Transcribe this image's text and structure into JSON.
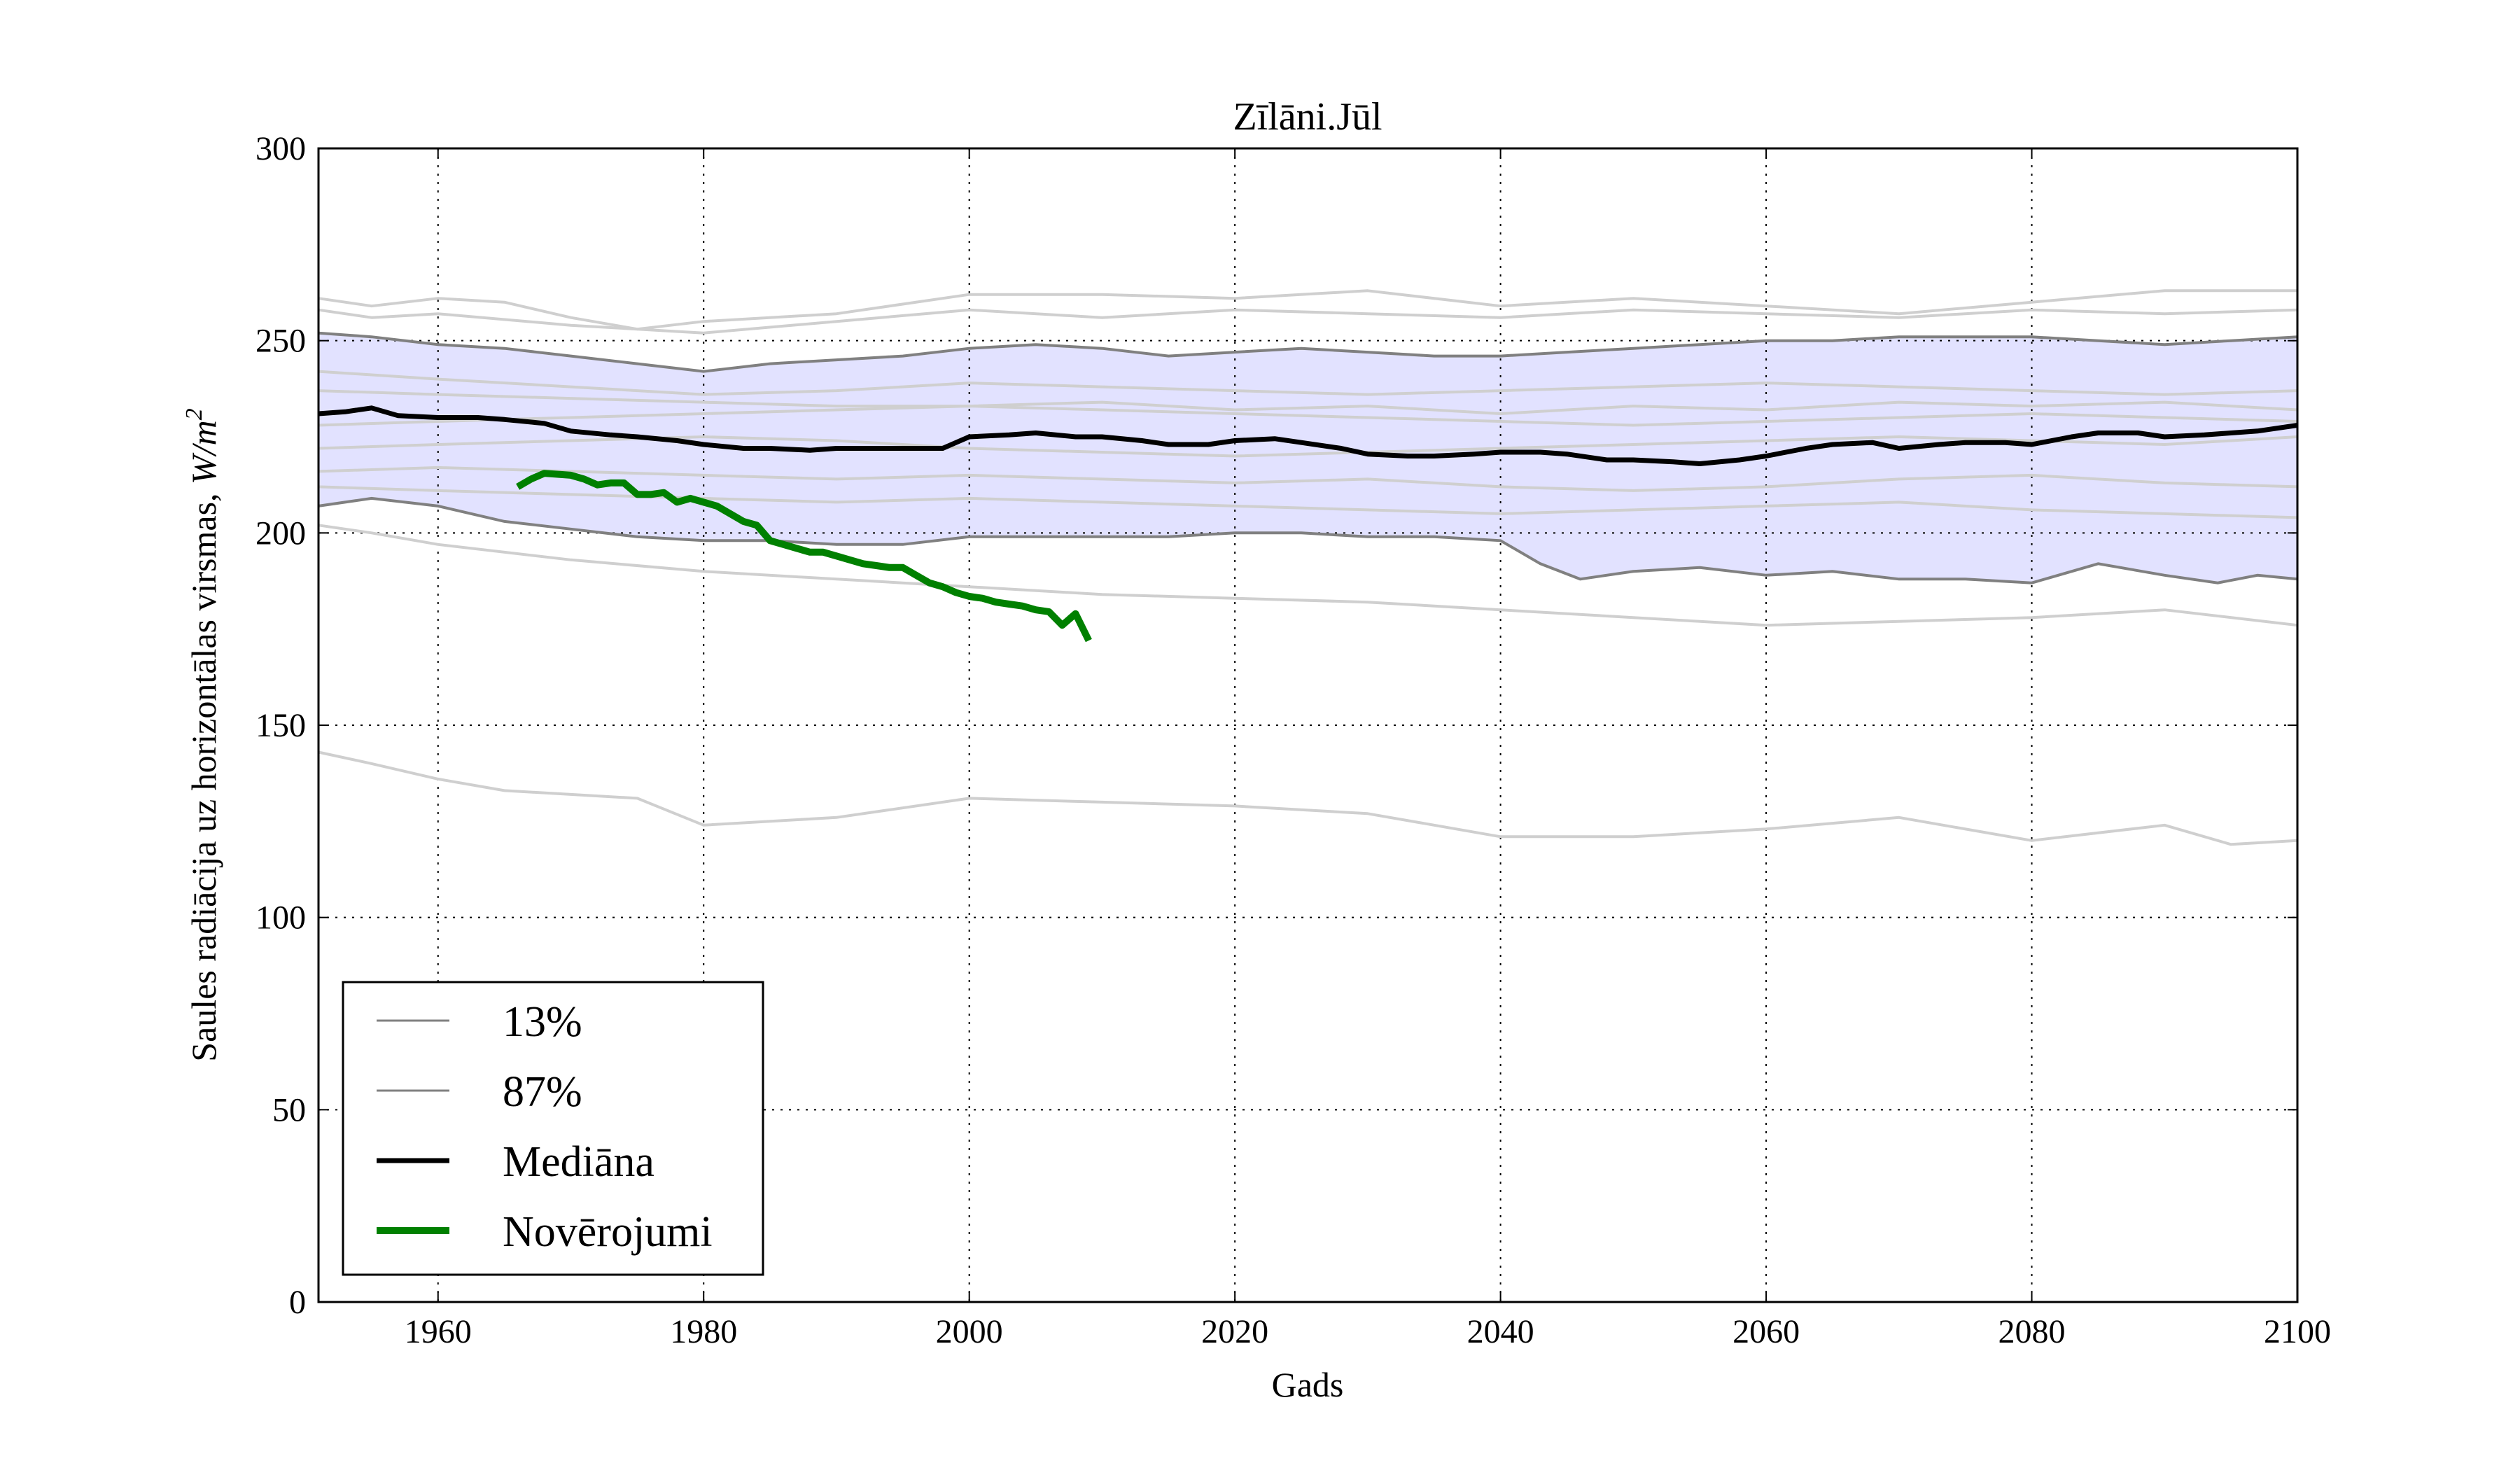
{
  "chart_data": {
    "type": "line",
    "title": "Zīlāni.Jūl",
    "xlabel": "Gads",
    "ylabel_text": "Saules radiācija uz horizontālas virsmas, ",
    "ylabel_unit_W": "W",
    "ylabel_unit_m": "/m",
    "ylabel_unit_exp": "2",
    "xlim": [
      1951,
      2100
    ],
    "ylim": [
      0,
      300
    ],
    "xticks": [
      "1960",
      "1980",
      "2000",
      "2020",
      "2040",
      "2060",
      "2080",
      "2100"
    ],
    "yticks": [
      "0",
      "50",
      "100",
      "150",
      "200",
      "250",
      "300"
    ],
    "grid": true,
    "legend_position": "lower-left",
    "legend": [
      {
        "label": "13%",
        "color": "#808080",
        "style": "thin"
      },
      {
        "label": "87%",
        "color": "#808080",
        "style": "thin"
      },
      {
        "label": "Mediāna",
        "color": "#000000",
        "style": "thick"
      },
      {
        "label": "Novērojumi",
        "color": "#008000",
        "style": "thicker"
      }
    ],
    "band": {
      "fill": "#e2e2ff",
      "lower": {
        "name": "13%",
        "x": [
          1951,
          1955,
          1960,
          1965,
          1970,
          1975,
          1980,
          1985,
          1990,
          1995,
          2000,
          2005,
          2010,
          2015,
          2020,
          2025,
          2030,
          2035,
          2040,
          2043,
          2046,
          2050,
          2055,
          2060,
          2065,
          2070,
          2075,
          2080,
          2085,
          2090,
          2094,
          2097,
          2100
        ],
        "y": [
          207,
          209,
          207,
          203,
          201,
          199,
          198,
          198,
          197,
          197,
          199,
          199,
          199,
          199,
          200,
          200,
          199,
          199,
          198,
          192,
          188,
          190,
          191,
          189,
          190,
          188,
          188,
          187,
          192,
          189,
          187,
          189,
          188
        ]
      },
      "upper": {
        "name": "87%",
        "x": [
          1951,
          1955,
          1960,
          1965,
          1970,
          1975,
          1980,
          1985,
          1990,
          1995,
          2000,
          2005,
          2010,
          2015,
          2020,
          2025,
          2030,
          2035,
          2040,
          2045,
          2050,
          2055,
          2060,
          2065,
          2070,
          2075,
          2080,
          2085,
          2090,
          2095,
          2100
        ],
        "y": [
          252,
          251,
          249,
          248,
          246,
          244,
          242,
          244,
          245,
          246,
          248,
          249,
          248,
          246,
          247,
          248,
          247,
          246,
          246,
          247,
          248,
          249,
          250,
          250,
          251,
          251,
          251,
          250,
          249,
          250,
          251
        ]
      }
    },
    "series": [
      {
        "name": "Mediāna",
        "color": "#000000",
        "x": [
          1951,
          1953,
          1955,
          1957,
          1960,
          1963,
          1965,
          1968,
          1970,
          1973,
          1975,
          1978,
          1980,
          1983,
          1985,
          1988,
          1990,
          1993,
          1995,
          1998,
          2000,
          2003,
          2005,
          2008,
          2010,
          2013,
          2015,
          2018,
          2020,
          2023,
          2025,
          2028,
          2030,
          2033,
          2035,
          2038,
          2040,
          2043,
          2045,
          2048,
          2050,
          2053,
          2055,
          2058,
          2060,
          2063,
          2065,
          2068,
          2070,
          2073,
          2075,
          2078,
          2080,
          2083,
          2085,
          2088,
          2090,
          2093,
          2095,
          2097,
          2100
        ],
        "y": [
          231,
          231.5,
          232.5,
          230.5,
          230,
          230,
          229.5,
          228.5,
          226.5,
          225.5,
          225,
          224,
          223,
          222,
          222,
          221.5,
          222,
          222,
          222,
          222,
          225,
          225.5,
          226,
          225,
          225,
          224,
          223,
          223,
          224,
          224.5,
          223.5,
          222,
          220.5,
          220,
          220,
          220.5,
          221,
          221,
          220.5,
          219,
          219,
          218.5,
          218,
          219,
          220,
          222,
          223,
          223.5,
          222,
          223,
          223.5,
          223.5,
          223,
          225,
          226,
          226,
          225,
          225.5,
          226,
          226.5,
          228
        ]
      },
      {
        "name": "Novērojumi",
        "color": "#008000",
        "x": [
          1966,
          1967,
          1968,
          1970,
          1971,
          1972,
          1973,
          1974,
          1975,
          1976,
          1977,
          1978,
          1979,
          1980,
          1981,
          1982,
          1983,
          1984,
          1985,
          1986,
          1987,
          1988,
          1989,
          1990,
          1991,
          1992,
          1993,
          1994,
          1995,
          1996,
          1997,
          1998,
          1999,
          2000,
          2001,
          2002,
          2003,
          2004,
          2005,
          2006,
          2007,
          2008,
          2009
        ],
        "y": [
          212,
          214,
          215.5,
          215,
          214,
          212.5,
          213,
          213,
          210,
          210,
          210.5,
          208,
          209,
          208,
          207,
          205,
          203,
          202,
          198,
          197,
          196,
          195,
          195,
          194,
          193,
          192,
          191.5,
          191,
          191,
          189,
          187,
          186,
          184.5,
          183.5,
          183,
          182,
          181.5,
          181,
          180,
          179.5,
          176,
          179,
          172
        ]
      }
    ],
    "ensemble_members": [
      {
        "x": [
          1951,
          1955,
          1960,
          1965,
          1970,
          1975,
          1980,
          1990,
          2000,
          2010,
          2020,
          2030,
          2040,
          2050,
          2060,
          2070,
          2080,
          2090,
          2100
        ],
        "y": [
          261,
          259,
          261,
          260,
          256,
          253,
          255,
          257,
          262,
          262,
          261,
          263,
          259,
          261,
          259,
          257,
          260,
          263,
          263
        ]
      },
      {
        "x": [
          1951,
          1955,
          1960,
          1970,
          1980,
          1990,
          2000,
          2010,
          2020,
          2030,
          2040,
          2050,
          2060,
          2070,
          2080,
          2090,
          2100
        ],
        "y": [
          258,
          256,
          257,
          254,
          252,
          255,
          258,
          256,
          258,
          257,
          256,
          258,
          257,
          256,
          258,
          257,
          258
        ]
      },
      {
        "x": [
          1951,
          1960,
          1970,
          1980,
          1990,
          2000,
          2010,
          2020,
          2030,
          2040,
          2050,
          2060,
          2070,
          2080,
          2090,
          2100
        ],
        "y": [
          242,
          240,
          238,
          236,
          237,
          239,
          238,
          237,
          236,
          237,
          238,
          239,
          238,
          237,
          236,
          237
        ]
      },
      {
        "x": [
          1951,
          1960,
          1970,
          1980,
          1990,
          2000,
          2010,
          2020,
          2030,
          2040,
          2050,
          2060,
          2070,
          2080,
          2090,
          2100
        ],
        "y": [
          237,
          236,
          235,
          234,
          233,
          233,
          234,
          232,
          233,
          231,
          233,
          232,
          234,
          233,
          234,
          232
        ]
      },
      {
        "x": [
          1951,
          1960,
          1970,
          1980,
          1990,
          2000,
          2010,
          2020,
          2030,
          2040,
          2050,
          2060,
          2070,
          2080,
          2090,
          2100
        ],
        "y": [
          228,
          229,
          230,
          231,
          232,
          233,
          232,
          231,
          230,
          229,
          228,
          229,
          230,
          231,
          230,
          229
        ]
      },
      {
        "x": [
          1951,
          1960,
          1970,
          1980,
          1990,
          2000,
          2010,
          2020,
          2030,
          2040,
          2050,
          2060,
          2070,
          2080,
          2090,
          2100
        ],
        "y": [
          222,
          223,
          224,
          225,
          224,
          222,
          221,
          220,
          221,
          222,
          223,
          224,
          225,
          224,
          223,
          225
        ]
      },
      {
        "x": [
          1951,
          1960,
          1970,
          1980,
          1990,
          2000,
          2010,
          2020,
          2030,
          2040,
          2050,
          2060,
          2070,
          2080,
          2090,
          2100
        ],
        "y": [
          216,
          217,
          216,
          215,
          214,
          215,
          214,
          213,
          214,
          212,
          211,
          212,
          214,
          215,
          213,
          212
        ]
      },
      {
        "x": [
          1951,
          1960,
          1970,
          1980,
          1990,
          2000,
          2010,
          2020,
          2030,
          2040,
          2050,
          2060,
          2070,
          2080,
          2090,
          2100
        ],
        "y": [
          212,
          211,
          210,
          209,
          208,
          209,
          208,
          207,
          206,
          205,
          206,
          207,
          208,
          206,
          205,
          204
        ]
      },
      {
        "x": [
          1951,
          1955,
          1960,
          1970,
          1980,
          1990,
          2000,
          2010,
          2020,
          2030,
          2040,
          2050,
          2060,
          2070,
          2080,
          2090,
          2100
        ],
        "y": [
          202,
          200,
          197,
          193,
          190,
          188,
          186,
          184,
          183,
          182,
          180,
          178,
          176,
          177,
          178,
          180,
          176
        ]
      },
      {
        "x": [
          1951,
          1955,
          1960,
          1965,
          1970,
          1975,
          1980,
          1990,
          2000,
          2010,
          2020,
          2030,
          2040,
          2050,
          2060,
          2070,
          2080,
          2090,
          2095,
          2100
        ],
        "y": [
          143,
          140,
          136,
          133,
          132,
          131,
          124,
          126,
          131,
          130,
          129,
          127,
          121,
          121,
          123,
          126,
          120,
          124,
          119,
          120
        ]
      }
    ]
  }
}
